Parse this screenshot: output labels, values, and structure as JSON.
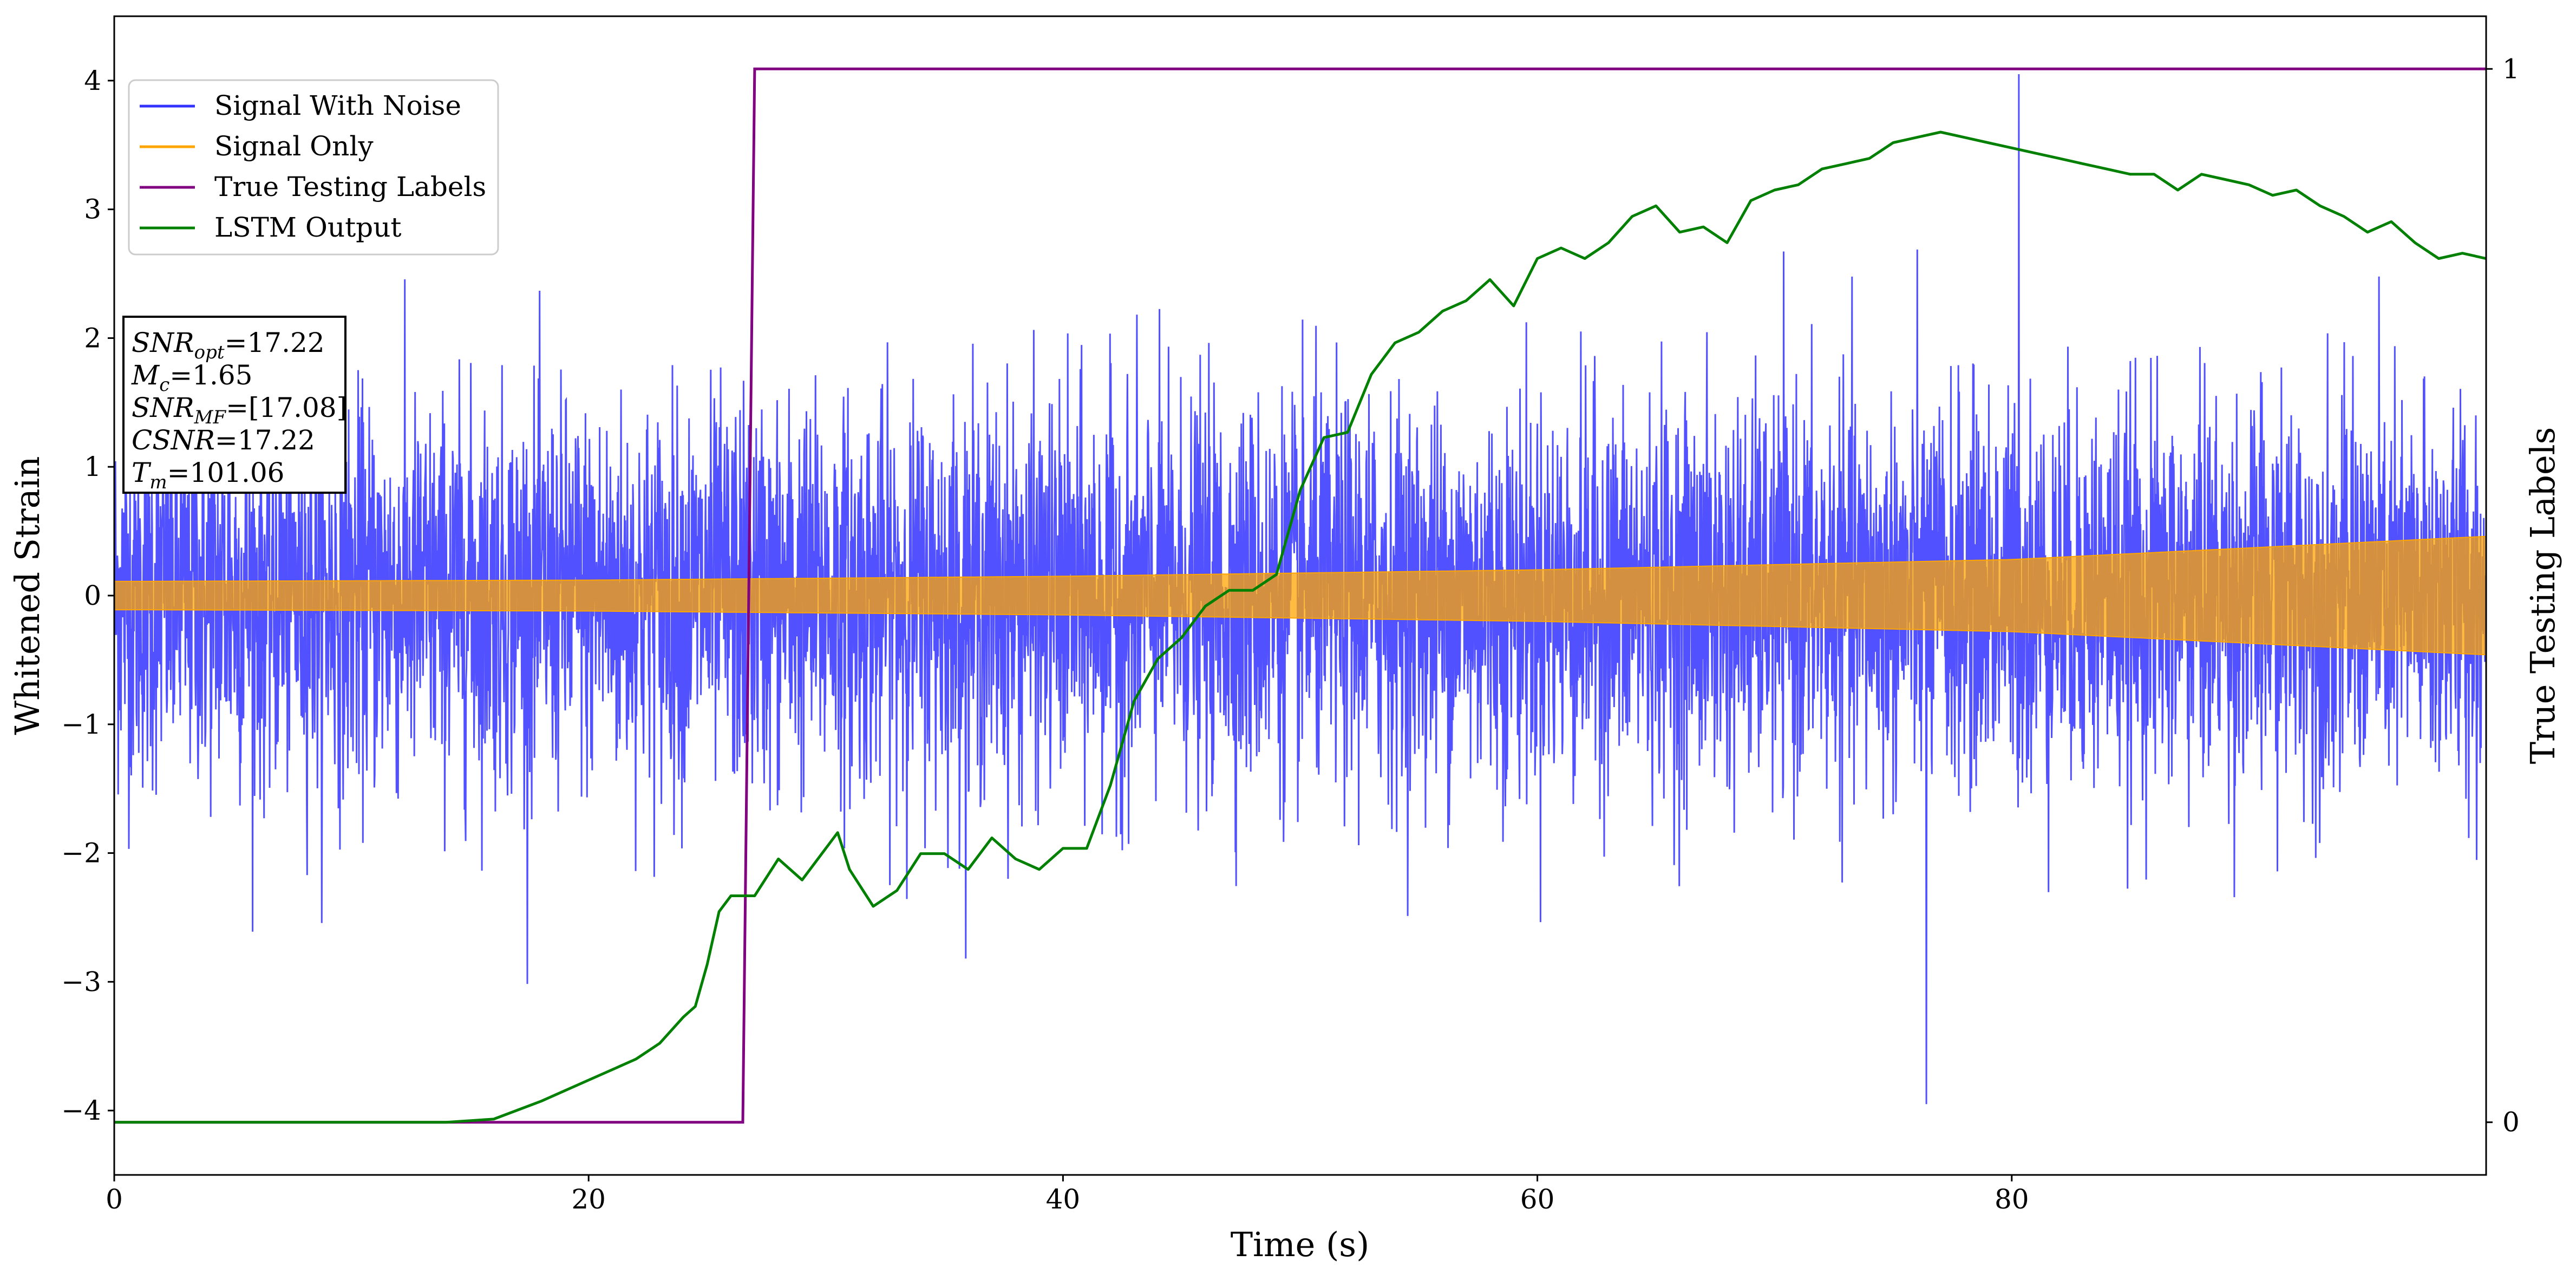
{
  "chart_data": {
    "type": "line",
    "title": "",
    "xlabel": "Time (s)",
    "ylabel": "Whitened Strain",
    "ylabel_right": "True Testing Labels",
    "xlim": [
      0,
      100
    ],
    "ylim": [
      -4.5,
      4.5
    ],
    "ylim_right": [
      -0.05,
      1.05
    ],
    "x_ticks": [
      0,
      20,
      40,
      60,
      80
    ],
    "x_tick_labels": [
      "0",
      "20",
      "40",
      "60",
      "80"
    ],
    "y_ticks": [
      -4,
      -3,
      -2,
      -1,
      0,
      1,
      2,
      3,
      4
    ],
    "y_tick_labels": [
      "−4",
      "−3",
      "−2",
      "−1",
      "0",
      "1",
      "2",
      "3",
      "4"
    ],
    "y_right_ticks": [
      0,
      1
    ],
    "y_right_tick_labels": [
      "0",
      "1"
    ],
    "grid": false,
    "legend_position": "top-left",
    "series": [
      {
        "name": "Signal With Noise",
        "axis": "left",
        "color": "#3333ff",
        "style": "dense-noise",
        "noise_sigma": 0.75,
        "approx_min": -3.95,
        "approx_max": 4.05,
        "spike_max": {
          "x": 80.3,
          "y": 4.05
        },
        "spike_min": {
          "x": 76.4,
          "y": -3.95
        }
      },
      {
        "name": "Signal Only",
        "axis": "left",
        "color": "#ffa500",
        "style": "chirp-envelope",
        "envelope_x": [
          0,
          20,
          40,
          60,
          80,
          100
        ],
        "envelope_amplitude": [
          0.11,
          0.12,
          0.15,
          0.2,
          0.28,
          0.46
        ]
      },
      {
        "name": "True Testing Labels",
        "axis": "right",
        "color": "#800080",
        "x": [
          0,
          26.5,
          27.0,
          100
        ],
        "y": [
          0,
          0,
          1,
          1
        ]
      },
      {
        "name": "LSTM Output",
        "axis": "right",
        "color": "#008000",
        "x": [
          0,
          14,
          16,
          18,
          20,
          21,
          22,
          23,
          24,
          24.5,
          25,
          25.5,
          26,
          27,
          28,
          29,
          30,
          30.5,
          31,
          32,
          33,
          34,
          35,
          36,
          37,
          38,
          39,
          40,
          41,
          42,
          43,
          44,
          45,
          46,
          47,
          48,
          49,
          50,
          51,
          52,
          53,
          54,
          55,
          56,
          57,
          58,
          59,
          60,
          61,
          62,
          63,
          64,
          65,
          66,
          67,
          68,
          69,
          70,
          71,
          72,
          73,
          74,
          75,
          76,
          77,
          78,
          79,
          80,
          81,
          82,
          83,
          84,
          85,
          86,
          87,
          88,
          89,
          90,
          91,
          92,
          93,
          94,
          95,
          96,
          97,
          98,
          99,
          100
        ],
        "y": [
          0.0,
          0.0,
          0.003,
          0.02,
          0.04,
          0.05,
          0.06,
          0.075,
          0.1,
          0.11,
          0.15,
          0.2,
          0.215,
          0.215,
          0.25,
          0.23,
          0.26,
          0.275,
          0.24,
          0.205,
          0.22,
          0.255,
          0.255,
          0.24,
          0.27,
          0.25,
          0.24,
          0.26,
          0.26,
          0.32,
          0.4,
          0.44,
          0.46,
          0.49,
          0.505,
          0.505,
          0.52,
          0.6,
          0.65,
          0.655,
          0.71,
          0.74,
          0.75,
          0.77,
          0.78,
          0.8,
          0.775,
          0.82,
          0.83,
          0.82,
          0.835,
          0.86,
          0.87,
          0.845,
          0.85,
          0.835,
          0.875,
          0.885,
          0.89,
          0.905,
          0.91,
          0.915,
          0.93,
          0.935,
          0.94,
          0.935,
          0.93,
          0.925,
          0.92,
          0.915,
          0.91,
          0.905,
          0.9,
          0.9,
          0.885,
          0.9,
          0.895,
          0.89,
          0.88,
          0.885,
          0.87,
          0.86,
          0.845,
          0.855,
          0.835,
          0.82,
          0.825,
          0.82
        ]
      }
    ],
    "annotation": {
      "lines": [
        {
          "main": "SNR",
          "sub": "opt",
          "value": "=17.22"
        },
        {
          "main": "M",
          "sub": "c",
          "value": "=1.65"
        },
        {
          "main": "SNR",
          "sub": "MF",
          "value": "=[17.08]"
        },
        {
          "main": "CSNR",
          "sub": "",
          "value": "=17.22"
        },
        {
          "main": "T",
          "sub": "m",
          "value": "=101.06"
        }
      ]
    }
  }
}
